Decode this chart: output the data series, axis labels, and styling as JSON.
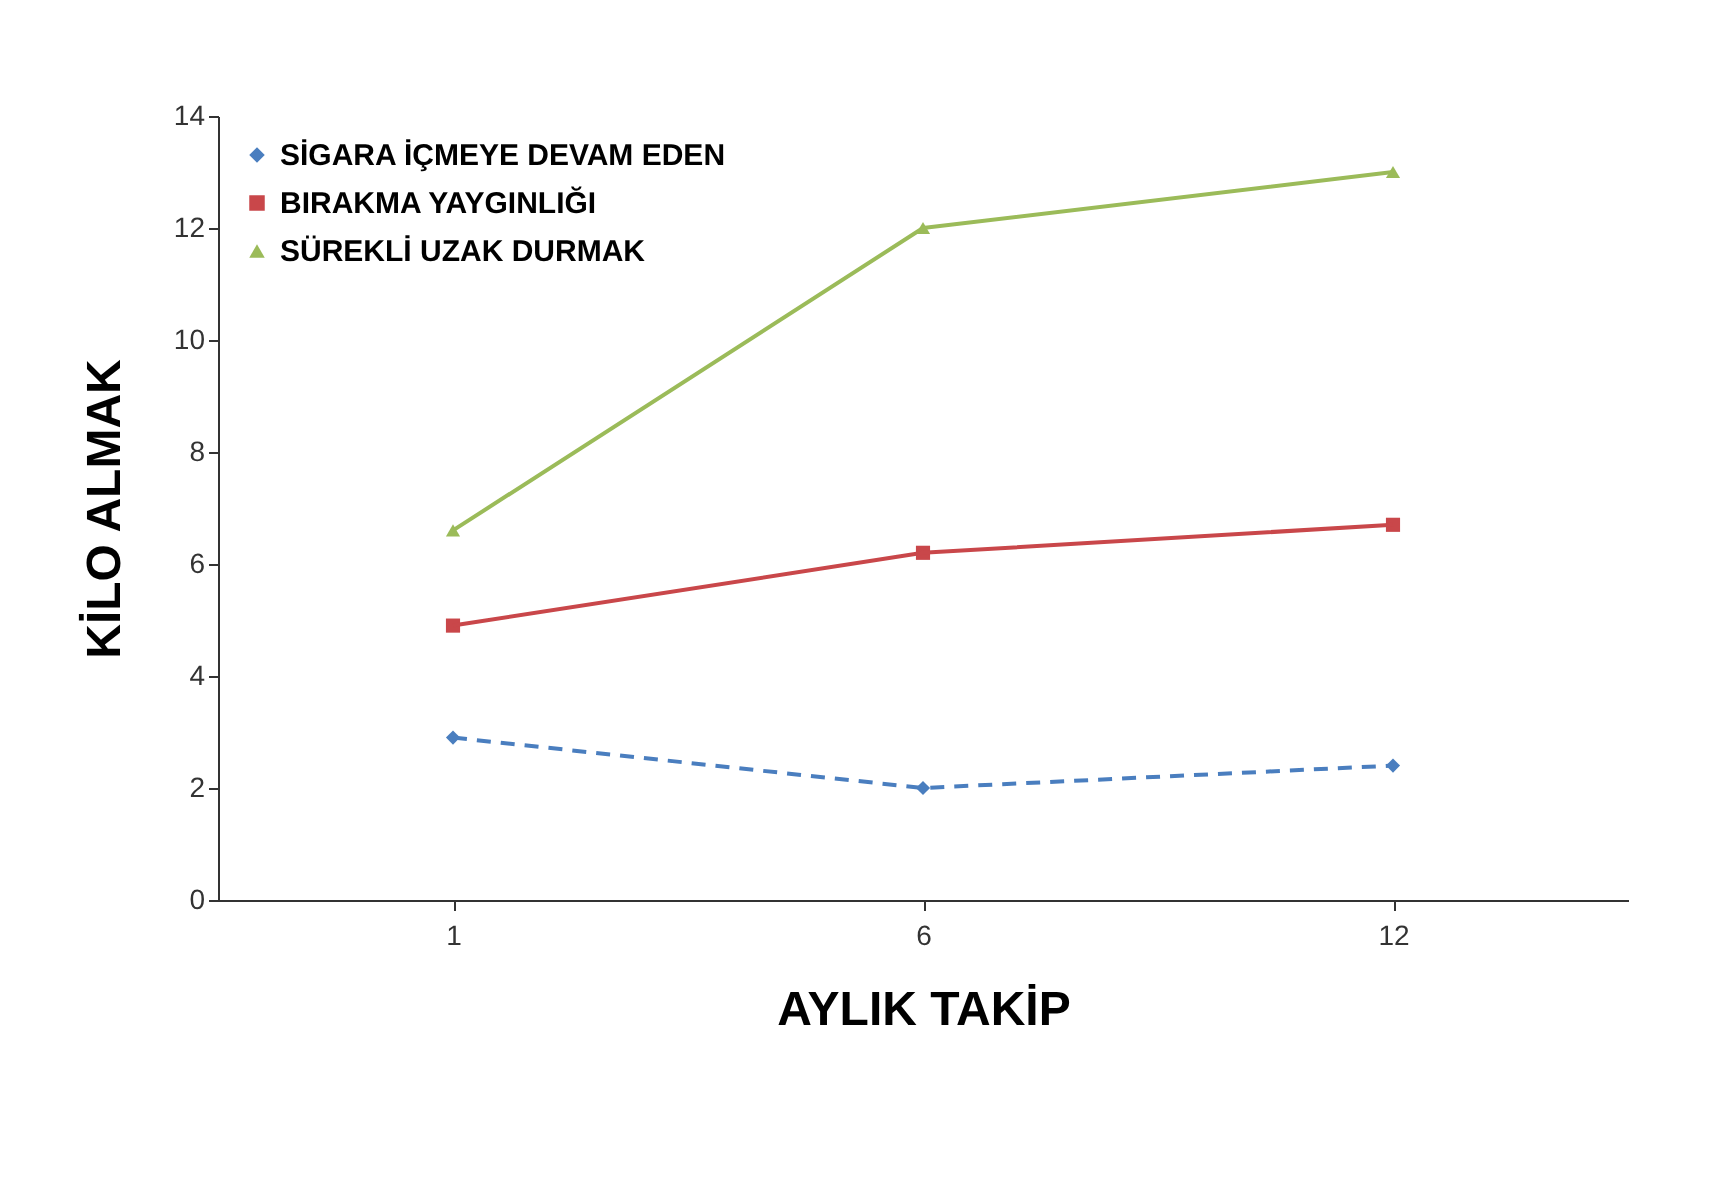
{
  "chart_data": {
    "type": "line",
    "xlabel": "AYLIK TAKİP",
    "ylabel": "KİLO ALMAK",
    "categories": [
      "1",
      "6",
      "12"
    ],
    "ylim": [
      0,
      14
    ],
    "yticks": [
      0,
      2,
      4,
      6,
      8,
      10,
      12,
      14
    ],
    "grid": false,
    "legend": "top left",
    "series": [
      {
        "name": "SİGARA İÇMEYE DEVAM EDEN",
        "color": "#4a7ebf",
        "values": [
          2.9,
          2.0,
          2.4
        ],
        "line_style": "dashed",
        "marker": "diamond"
      },
      {
        "name": " BIRAKMA YAYGINLIĞI",
        "color": "#c9474a",
        "values": [
          4.9,
          6.2,
          6.7
        ],
        "line_style": "solid",
        "marker": "square"
      },
      {
        "name": "SÜREKLİ UZAK DURMAK",
        "color": "#9bbb59",
        "values": [
          6.6,
          12.0,
          13.0
        ],
        "line_style": "solid",
        "marker": "triangle"
      }
    ]
  }
}
